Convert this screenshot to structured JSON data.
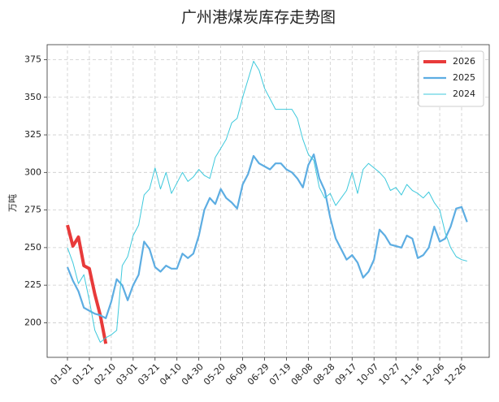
{
  "chart_data": {
    "type": "line",
    "title": "广州港煤炭库存走势图",
    "y_label": "万吨",
    "x": [
      "01-01",
      "01-06",
      "01-11",
      "01-16",
      "01-21",
      "01-26",
      "01-31",
      "02-05",
      "02-10",
      "02-15",
      "02-20",
      "02-25",
      "03-01",
      "03-06",
      "03-11",
      "03-16",
      "03-21",
      "03-26",
      "03-31",
      "04-05",
      "04-10",
      "04-15",
      "04-20",
      "04-25",
      "04-30",
      "05-05",
      "05-10",
      "05-15",
      "05-20",
      "05-25",
      "05-30",
      "06-04",
      "06-09",
      "06-14",
      "06-19",
      "06-24",
      "06-29",
      "07-04",
      "07-09",
      "07-14",
      "07-19",
      "07-24",
      "07-29",
      "08-03",
      "08-08",
      "08-13",
      "08-18",
      "08-23",
      "08-28",
      "09-02",
      "09-07",
      "09-12",
      "09-17",
      "09-22",
      "09-27",
      "10-02",
      "10-07",
      "10-12",
      "10-17",
      "10-22",
      "10-27",
      "11-01",
      "11-06",
      "11-11",
      "11-16",
      "11-21",
      "11-26",
      "12-01",
      "12-06",
      "12-11",
      "12-16",
      "12-21",
      "12-26",
      "12-31"
    ],
    "series": [
      {
        "name": "2026",
        "color": "#e83a3a",
        "width": 4,
        "values": [
          265,
          251,
          257,
          238,
          236,
          219,
          205,
          186,
          null,
          null,
          null,
          null,
          null,
          null,
          null,
          null,
          null,
          null,
          null,
          null,
          null,
          null,
          null,
          null,
          null,
          null,
          null,
          null,
          null,
          null,
          null,
          null,
          null,
          null,
          null,
          null,
          null,
          null,
          null,
          null,
          null,
          null,
          null,
          null,
          null,
          null,
          null,
          null,
          null,
          null,
          null,
          null,
          null,
          null,
          null,
          null,
          null,
          null,
          null,
          null,
          null,
          null,
          null,
          null,
          null,
          null,
          null,
          null,
          null,
          null,
          null,
          null,
          null,
          null
        ]
      },
      {
        "name": "2025",
        "color": "#5dade2",
        "width": 2.2,
        "values": [
          237,
          228,
          221,
          210,
          208,
          206,
          205,
          203,
          214,
          229,
          225,
          215,
          225,
          232,
          254,
          249,
          237,
          234,
          238,
          236,
          236,
          246,
          243,
          246,
          258,
          275,
          283,
          279,
          289,
          283,
          280,
          276,
          292,
          299,
          311,
          306,
          304,
          302,
          306,
          306,
          302,
          300,
          296,
          290,
          305,
          312,
          296,
          288,
          270,
          256,
          249,
          242,
          245,
          240,
          230,
          234,
          242,
          262,
          258,
          252,
          251,
          250,
          258,
          256,
          243,
          245,
          250,
          264,
          254,
          256,
          264,
          276,
          277,
          267
        ]
      },
      {
        "name": "2024",
        "color": "#3ec9dc",
        "width": 1,
        "values": [
          250,
          240,
          226,
          232,
          215,
          195,
          187,
          190,
          192,
          195,
          238,
          244,
          258,
          265,
          285,
          289,
          303,
          289,
          300,
          286,
          293,
          300,
          294,
          297,
          302,
          298,
          296,
          310,
          316,
          322,
          333,
          336,
          350,
          362,
          374,
          368,
          356,
          349,
          342,
          342,
          342,
          342,
          336,
          322,
          312,
          308,
          290,
          283,
          286,
          278,
          283,
          288,
          300,
          286,
          302,
          306,
          303,
          300,
          296,
          288,
          290,
          285,
          292,
          288,
          286,
          283,
          287,
          280,
          275,
          260,
          250,
          244,
          242,
          241
        ]
      }
    ],
    "xticks": [
      "01-01",
      "01-21",
      "02-10",
      "03-01",
      "03-21",
      "04-10",
      "04-30",
      "05-20",
      "06-09",
      "06-29",
      "07-19",
      "08-08",
      "08-28",
      "09-17",
      "10-07",
      "10-27",
      "11-16",
      "12-06",
      "12-26"
    ],
    "ylim": [
      177,
      385
    ],
    "yticks": [
      200,
      225,
      250,
      275,
      300,
      325,
      350,
      375
    ],
    "grid": true,
    "legend": "upper right"
  }
}
